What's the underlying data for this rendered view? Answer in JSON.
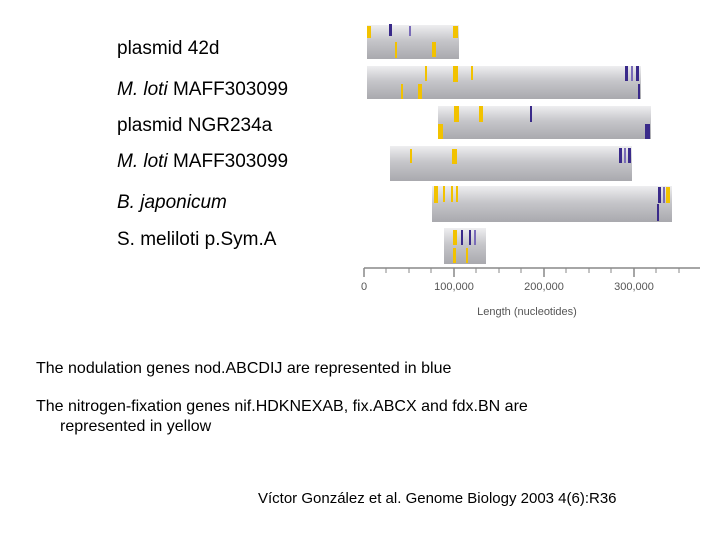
{
  "labels": [
    {
      "italic": "",
      "rest": "plasmid 42d"
    },
    {
      "italic": "M. loti",
      "rest": " MAFF303099"
    },
    {
      "italic": "",
      "rest": "plasmid NGR234a"
    },
    {
      "italic": "M. loti",
      "rest": " MAFF303099"
    },
    {
      "italic": "B. japonicum",
      "rest": ""
    },
    {
      "italic": "",
      "rest": "S. meliloti p.Sym.A"
    }
  ],
  "axis": {
    "ticks": [
      "0",
      "100,000",
      "200,000",
      "300,000"
    ],
    "title": "Length (nucleotides)"
  },
  "legend": {
    "nod": "The nodulation genes nod.ABCDIJ are represented in blue",
    "nif_line1": "The nitrogen-fixation genes nif.HDKNEXAB, fix.ABCX and fdx.BN are",
    "nif_line2": "represented in yellow"
  },
  "citation": "Víctor González et al.  Genome Biology 2003 4(6):R36",
  "colors": {
    "nod_blue": "#3a2a8a",
    "nif_yellow": "#f2c200",
    "bar_gray": "#c9c9cd"
  }
}
